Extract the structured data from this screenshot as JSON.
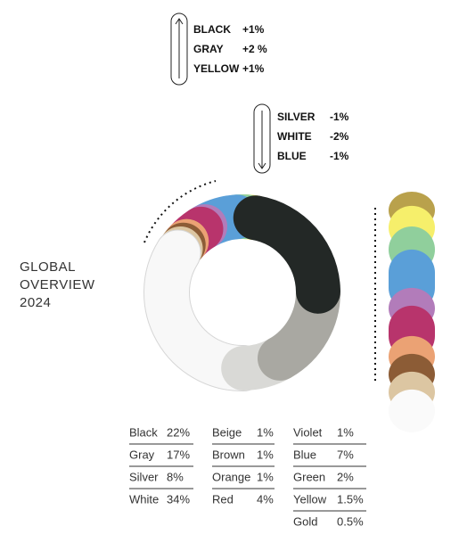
{
  "chart_data": {
    "type": "donut",
    "title": "GLOBAL OVERVIEW 2024",
    "categories": [
      "Black",
      "Gray",
      "Silver",
      "White",
      "Beige",
      "Brown",
      "Orange",
      "Red",
      "Violet",
      "Blue",
      "Green",
      "Yellow",
      "Gold"
    ],
    "values": [
      22,
      17,
      8,
      34,
      1,
      1,
      1,
      4,
      1,
      7,
      2,
      1.5,
      0.5
    ],
    "value_labels": [
      "22%",
      "17%",
      "8%",
      "34%",
      "1%",
      "1%",
      "1%",
      "4%",
      "1%",
      "7%",
      "2%",
      "1.5%",
      "0.5%"
    ],
    "colors": [
      "#232826",
      "#a9a8a2",
      "#d9d9d6",
      "#f8f8f8",
      "#dcc6a2",
      "#8c5c36",
      "#eba274",
      "#b8346c",
      "#b27cba",
      "#5a9fd8",
      "#90cf9c",
      "#f6ef6b",
      "#b9a14c"
    ],
    "changes_up": [
      {
        "name": "BLACK",
        "label": "+1%"
      },
      {
        "name": "GRAY",
        "label": "+2 %"
      },
      {
        "name": "YELLOW",
        "label": "+1%"
      }
    ],
    "changes_down": [
      {
        "name": "SILVER",
        "label": "-1%"
      },
      {
        "name": "WHITE",
        "label": "-2%"
      },
      {
        "name": "BLUE",
        "label": "-1%"
      }
    ]
  }
}
